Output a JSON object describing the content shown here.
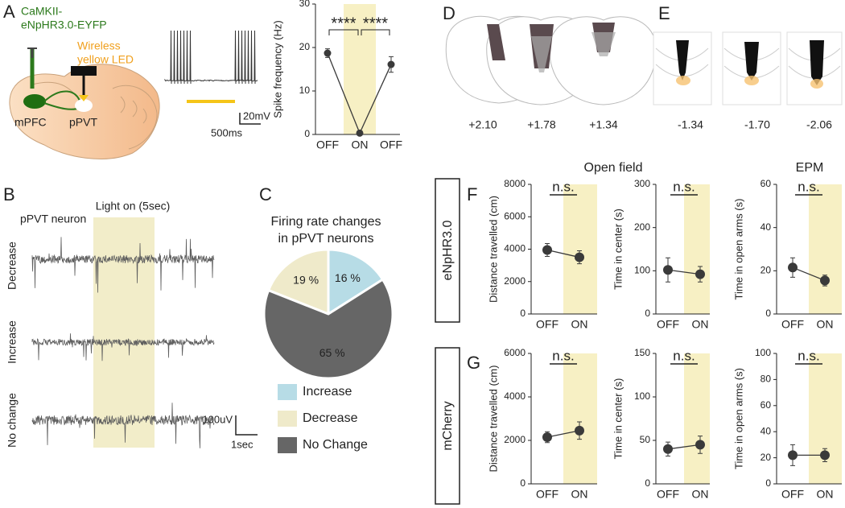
{
  "panel_labels": [
    "A",
    "B",
    "C",
    "D",
    "E",
    "F",
    "G"
  ],
  "diagram_A": {
    "construct": [
      "CaMKII-",
      "eNpHR3.0-EYFP"
    ],
    "led": [
      "Wireless",
      "yellow LED"
    ],
    "regions": [
      "mPFC",
      "pPVT"
    ],
    "scale": [
      "20mV",
      "500ms"
    ]
  },
  "traces_B": {
    "light": "Light on (5sec)",
    "cell": "pPVT neuron",
    "rows": [
      "Decrease",
      "Increase",
      "No change"
    ],
    "scale": [
      "100uV",
      "1sec"
    ]
  },
  "sections_D": [
    "+2.10",
    "+1.78",
    "+1.34"
  ],
  "sections_E": [
    "-1.34",
    "-1.70",
    "-2.06"
  ],
  "groups": [
    "eNpHR3.0",
    "mCherry"
  ],
  "tests": [
    "Open field",
    "EPM"
  ],
  "chart_data": [
    {
      "type": "line",
      "ylabel": "Spike frequency (Hz)",
      "categories": [
        "OFF",
        "ON",
        "OFF"
      ],
      "values": [
        18.7,
        0.3,
        16.1
      ],
      "errors": [
        1.0,
        0.3,
        1.8
      ],
      "ylim": [
        0,
        30
      ],
      "yticks": [
        0,
        10,
        20,
        30
      ],
      "annotations": [
        "****",
        "****"
      ],
      "color": "#3a3a3a",
      "highlight_color": "#f7f0c4"
    },
    {
      "type": "pie",
      "title": [
        "Firing rate changes",
        "in pPVT neurons"
      ],
      "categories": [
        "Increase",
        "Decrease",
        "No Change"
      ],
      "values": [
        16,
        19,
        65
      ],
      "value_labels": [
        "16 %",
        "19 %",
        "65 %"
      ],
      "colors": [
        "#b7dce6",
        "#efeaca",
        "#666666"
      ]
    },
    {
      "type": "line",
      "ylabel": "Distance travelled (cm)",
      "categories": [
        "OFF",
        "ON"
      ],
      "values": [
        3950,
        3500
      ],
      "errors": [
        400,
        400
      ],
      "ylim": [
        0,
        8000
      ],
      "yticks": [
        0,
        2000,
        4000,
        6000,
        8000
      ],
      "annotations": [
        "n.s."
      ],
      "color": "#3a3a3a",
      "highlight_color": "#f7f0c4"
    },
    {
      "type": "line",
      "ylabel": "Time in center (s)",
      "categories": [
        "OFF",
        "ON"
      ],
      "values": [
        102,
        92
      ],
      "errors": [
        28,
        18
      ],
      "ylim": [
        0,
        300
      ],
      "yticks": [
        0,
        100,
        200,
        300
      ],
      "annotations": [
        "n.s."
      ],
      "color": "#3a3a3a",
      "highlight_color": "#f7f0c4"
    },
    {
      "type": "line",
      "ylabel": "Time in open arms (s)",
      "categories": [
        "OFF",
        "ON"
      ],
      "values": [
        21.5,
        15.5
      ],
      "errors": [
        4.5,
        2.5
      ],
      "ylim": [
        0,
        60
      ],
      "yticks": [
        0,
        20,
        40,
        60
      ],
      "annotations": [
        "n.s."
      ],
      "color": "#3a3a3a",
      "highlight_color": "#f7f0c4"
    },
    {
      "type": "line",
      "ylabel": "Distance travelled (cm)",
      "categories": [
        "OFF",
        "ON"
      ],
      "values": [
        2150,
        2450
      ],
      "errors": [
        250,
        400
      ],
      "ylim": [
        0,
        6000
      ],
      "yticks": [
        0,
        2000,
        4000,
        6000
      ],
      "annotations": [
        "n.s."
      ],
      "color": "#3a3a3a",
      "highlight_color": "#f7f0c4"
    },
    {
      "type": "line",
      "ylabel": "Time in center (s)",
      "categories": [
        "OFF",
        "ON"
      ],
      "values": [
        40,
        45
      ],
      "errors": [
        8,
        10
      ],
      "ylim": [
        0,
        150
      ],
      "yticks": [
        0,
        50,
        100,
        150
      ],
      "annotations": [
        "n.s."
      ],
      "color": "#3a3a3a",
      "highlight_color": "#f7f0c4"
    },
    {
      "type": "line",
      "ylabel": "Time in open arms (s)",
      "categories": [
        "OFF",
        "ON"
      ],
      "values": [
        22,
        22
      ],
      "errors": [
        8,
        5
      ],
      "ylim": [
        0,
        100
      ],
      "yticks": [
        0,
        20,
        40,
        60,
        80,
        100
      ],
      "annotations": [
        "n.s."
      ],
      "color": "#3a3a3a",
      "highlight_color": "#f7f0c4"
    }
  ]
}
